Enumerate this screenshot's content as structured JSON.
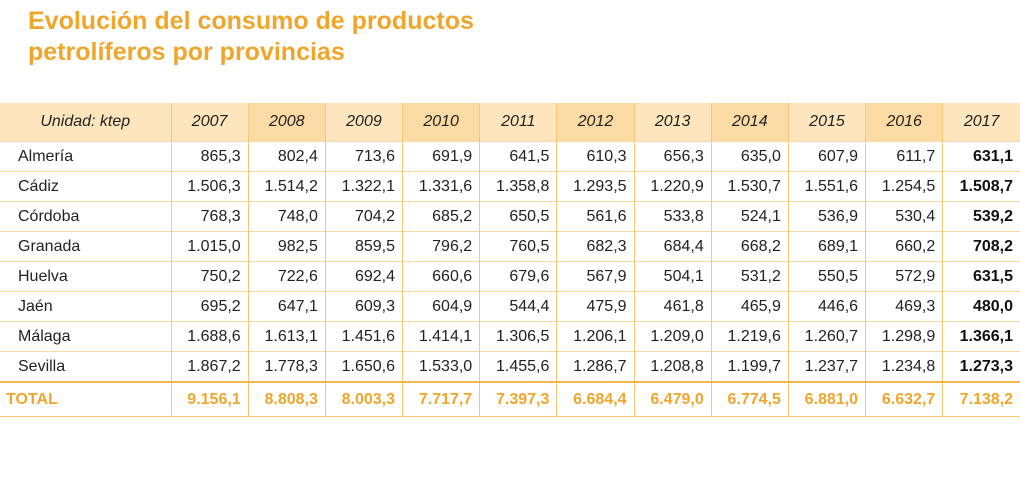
{
  "title": [
    "Evolución del consumo de productos",
    "petrolíferos por provincias"
  ],
  "table": {
    "header": [
      "Unidad: ktep",
      "2007",
      "2008",
      "2009",
      "2010",
      "2011",
      "2012",
      "2013",
      "2014",
      "2015",
      "2016",
      "2017"
    ],
    "rows": [
      [
        "Almería",
        "865,3",
        "802,4",
        "713,6",
        "691,9",
        "641,5",
        "610,3",
        "656,3",
        "635,0",
        "607,9",
        "611,7",
        "631,1"
      ],
      [
        "Cádiz",
        "1.506,3",
        "1.514,2",
        "1.322,1",
        "1.331,6",
        "1.358,8",
        "1.293,5",
        "1.220,9",
        "1.530,7",
        "1.551,6",
        "1.254,5",
        "1.508,7"
      ],
      [
        "Córdoba",
        "768,3",
        "748,0",
        "704,2",
        "685,2",
        "650,5",
        "561,6",
        "533,8",
        "524,1",
        "536,9",
        "530,4",
        "539,2"
      ],
      [
        "Granada",
        "1.015,0",
        "982,5",
        "859,5",
        "796,2",
        "760,5",
        "682,3",
        "684,4",
        "668,2",
        "689,1",
        "660,2",
        "708,2"
      ],
      [
        "Huelva",
        "750,2",
        "722,6",
        "692,4",
        "660,6",
        "679,6",
        "567,9",
        "504,1",
        "531,2",
        "550,5",
        "572,9",
        "631,5"
      ],
      [
        "Jaén",
        "695,2",
        "647,1",
        "609,3",
        "604,9",
        "544,4",
        "475,9",
        "461,8",
        "465,9",
        "446,6",
        "469,3",
        "480,0"
      ],
      [
        "Málaga",
        "1.688,6",
        "1.613,1",
        "1.451,6",
        "1.414,1",
        "1.306,5",
        "1.206,1",
        "1.209,0",
        "1.219,6",
        "1.260,7",
        "1.298,9",
        "1.366,1"
      ],
      [
        "Sevilla",
        "1.867,2",
        "1.778,3",
        "1.650,6",
        "1.533,0",
        "1.455,6",
        "1.286,7",
        "1.208,8",
        "1.199,7",
        "1.237,7",
        "1.234,8",
        "1.273,3"
      ]
    ],
    "total": [
      "TOTAL",
      "9.156,1",
      "8.808,3",
      "8.003,3",
      "7.717,7",
      "7.397,3",
      "6.684,4",
      "6.479,0",
      "6.774,5",
      "6.881,0",
      "6.632,7",
      "7.138,2"
    ]
  }
}
